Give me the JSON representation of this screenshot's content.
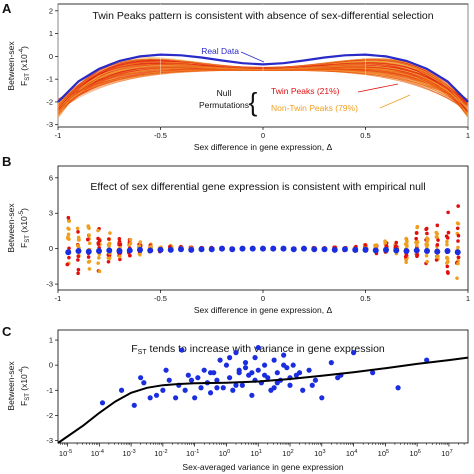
{
  "figure": {
    "panels": [
      {
        "letter": "A",
        "title": "Twin Peaks pattern is consistent with absence of sex-differential selection",
        "ylabel_top": "Between-sex",
        "ylabel_bottom": "F",
        "ylabel_sub": "ST",
        "ylabel_unit": " (x10",
        "ylabel_exp": "-4",
        "ylabel_close": ")",
        "xlabel": "Sex difference in gene expression, Δ",
        "annotations": {
          "real": "Real Data",
          "null_line1": "Null",
          "null_line2": "Permutations",
          "twin": "Twin Peaks (21%)",
          "nontwin": "Non-Twin Peaks (79%)"
        }
      },
      {
        "letter": "B",
        "title": "Effect of sex differential gene expression is consistent with empirical null",
        "ylabel_top": "Between-sex",
        "ylabel_bottom": "F",
        "ylabel_sub": "ST",
        "ylabel_unit": " (x10",
        "ylabel_exp": "-5",
        "ylabel_close": ")",
        "xlabel": "Sex difference in gene expression, Δ"
      },
      {
        "letter": "C",
        "title_main": "F",
        "title_sub": "ST",
        "title_rest": " tends to increase with variance in gene expression",
        "ylabel_top": "Between-sex",
        "ylabel_bottom": "F",
        "ylabel_sub": "ST",
        "ylabel_unit": " (x10",
        "ylabel_exp": "-4",
        "ylabel_close": ")",
        "xlabel": "Sex-averaged variance in gene expression"
      }
    ]
  },
  "colors": {
    "real": "#2a2ac8",
    "twin": "#e01010",
    "nontwin": "#f0a020",
    "mid": "#f06010",
    "blue_points": "#1a2ee0",
    "fit": "#000000"
  },
  "chart_data": [
    {
      "type": "line",
      "panel": "A",
      "xlim": [
        -1,
        1
      ],
      "ylim": [
        -3.1,
        2.3
      ],
      "xticks": [
        -1,
        -0.5,
        0,
        0.5,
        1
      ],
      "xtick_labels": [
        "-1",
        "-0.5",
        "0",
        "0.5",
        "1"
      ],
      "yticks": [
        -3,
        -2,
        -1,
        0,
        1,
        2
      ],
      "ytick_labels": [
        "-3",
        "-2",
        "-1",
        "0",
        "1",
        "2"
      ],
      "series": [
        {
          "name": "Real Data",
          "x": [
            -1,
            -0.9,
            -0.8,
            -0.7,
            -0.6,
            -0.5,
            -0.4,
            -0.3,
            -0.2,
            -0.1,
            0,
            0.1,
            0.2,
            0.3,
            0.4,
            0.5,
            0.6,
            0.7,
            0.8,
            0.9,
            1
          ],
          "values": [
            -2.0,
            -1.1,
            -0.55,
            -0.2,
            0.0,
            0.08,
            0.05,
            -0.05,
            -0.18,
            -0.3,
            -0.35,
            -0.3,
            -0.18,
            -0.05,
            0.05,
            0.08,
            0.0,
            -0.2,
            -0.55,
            -1.1,
            -2.0
          ]
        }
      ],
      "null_permutation_groups": [
        {
          "name": "Twin Peaks (21%)",
          "share_percent": 21
        },
        {
          "name": "Non-Twin Peaks (79%)",
          "share_percent": 79
        }
      ]
    },
    {
      "type": "scatter",
      "panel": "B",
      "xlim": [
        -1,
        1
      ],
      "ylim": [
        -3.5,
        7
      ],
      "xticks": [
        -1,
        -0.5,
        0,
        0.5,
        1
      ],
      "xtick_labels": [
        "-1",
        "-0.5",
        "0",
        "0.5",
        "1"
      ],
      "yticks": [
        -3,
        0,
        3,
        6
      ],
      "ytick_labels": [
        "-3",
        "0",
        "3",
        "6"
      ],
      "real_x": [
        -0.95,
        -0.9,
        -0.85,
        -0.8,
        -0.75,
        -0.7,
        -0.65,
        -0.6,
        -0.55,
        -0.5,
        -0.45,
        -0.4,
        -0.35,
        -0.3,
        -0.25,
        -0.2,
        -0.15,
        -0.1,
        -0.05,
        0,
        0.05,
        0.1,
        0.15,
        0.2,
        0.25,
        0.3,
        0.35,
        0.4,
        0.45,
        0.5,
        0.55,
        0.6,
        0.65,
        0.7,
        0.75,
        0.8,
        0.85,
        0.9,
        0.95
      ],
      "real_y": [
        -0.3,
        -0.2,
        -0.25,
        -0.2,
        -0.15,
        -0.2,
        -0.15,
        -0.1,
        -0.15,
        -0.1,
        -0.1,
        -0.05,
        -0.1,
        -0.05,
        -0.05,
        0,
        -0.05,
        0,
        0,
        0,
        0,
        0,
        -0.05,
        0,
        -0.05,
        -0.05,
        -0.1,
        -0.05,
        -0.1,
        -0.1,
        -0.15,
        -0.1,
        -0.15,
        -0.2,
        -0.15,
        -0.2,
        -0.25,
        -0.2,
        -0.3
      ],
      "null_spread": [
        2.6,
        2.4,
        2.2,
        1.8,
        1.4,
        1.0,
        0.7,
        0.5,
        0.35,
        0.25,
        0.2,
        0.15,
        0.12,
        0.1,
        0.08,
        0.06,
        0.05,
        0.05,
        0.04,
        0.04,
        0.04,
        0.05,
        0.05,
        0.06,
        0.08,
        0.1,
        0.12,
        0.15,
        0.2,
        0.25,
        0.35,
        0.5,
        0.7,
        1.0,
        1.4,
        1.8,
        2.2,
        2.4,
        2.6
      ]
    },
    {
      "type": "scatter",
      "panel": "C",
      "x_scale": "log10",
      "xlim_log10": [
        -5.3,
        7.6
      ],
      "ylim": [
        -3.1,
        1.4
      ],
      "xtick_exponents": [
        -5,
        -4,
        -3,
        -2,
        -1,
        0,
        1,
        2,
        3,
        4,
        5,
        6,
        7
      ],
      "xtick_labels": [
        "10",
        "10",
        "10",
        "10",
        "10",
        "10",
        "10",
        "10",
        "10",
        "10",
        "10",
        "10",
        "10"
      ],
      "xtick_exponent_labels": [
        "-5",
        "-4",
        "-3",
        "-2",
        "-1",
        "0",
        "1",
        "2",
        "3",
        "4",
        "5",
        "6",
        "7"
      ],
      "yticks": [
        -3,
        -2,
        -1,
        0,
        1
      ],
      "ytick_labels": [
        "-3",
        "-2",
        "-1",
        "0",
        "1"
      ],
      "fit_x_log10": [
        -5.3,
        -4.5,
        -4,
        -3.5,
        -3,
        -2.5,
        -2,
        -1.5,
        -1,
        0,
        1,
        2,
        3,
        4,
        5,
        6,
        7,
        7.6
      ],
      "fit_y": [
        -3.1,
        -2.4,
        -1.9,
        -1.45,
        -1.1,
        -0.9,
        -0.8,
        -0.75,
        -0.72,
        -0.7,
        -0.65,
        -0.55,
        -0.42,
        -0.28,
        -0.12,
        0.05,
        0.2,
        0.3
      ],
      "points_x_log10": [
        -3.9,
        -3.3,
        -2.9,
        -2.6,
        -2.4,
        -2.2,
        -2.0,
        -1.8,
        -1.6,
        -1.5,
        -1.3,
        -1.2,
        -1.0,
        -0.9,
        -0.8,
        -0.7,
        -0.6,
        -0.5,
        -0.4,
        -0.3,
        -0.2,
        -0.1,
        0.0,
        0.1,
        0.2,
        0.3,
        0.4,
        0.5,
        0.6,
        0.7,
        0.8,
        0.9,
        1.0,
        1.1,
        1.2,
        1.3,
        1.4,
        1.5,
        1.6,
        1.7,
        1.8,
        1.9,
        2.0,
        2.1,
        2.2,
        2.4,
        2.6,
        2.8,
        3.0,
        3.3,
        3.6,
        4.0,
        4.6,
        5.4,
        6.3,
        -2.7,
        -1.9,
        -1.1,
        -0.3,
        0.3,
        0.6,
        0.9,
        1.2,
        1.5,
        1.8,
        2.3,
        0.1,
        0.8,
        -0.5,
        1.6,
        2.7,
        -1.4,
        0.4,
        1.0,
        2.0,
        3.5
      ],
      "points_y": [
        -1.5,
        -1.0,
        -1.6,
        -0.7,
        -1.3,
        -1.2,
        -1.0,
        -0.6,
        -1.3,
        -0.8,
        -1.0,
        -0.4,
        -1.3,
        -0.5,
        -0.9,
        -0.2,
        -0.7,
        -1.1,
        -0.3,
        -0.6,
        0.2,
        -0.9,
        0.0,
        -0.5,
        -1.0,
        0.5,
        -0.3,
        -0.8,
        0.1,
        -0.4,
        -1.2,
        0.3,
        -0.2,
        -0.7,
        0.0,
        -0.5,
        -1.0,
        0.2,
        -0.3,
        -0.6,
        0.4,
        -0.1,
        -0.8,
        0.0,
        -0.4,
        -1.0,
        -0.2,
        -0.6,
        -1.3,
        0.1,
        -0.4,
        0.5,
        -0.3,
        -0.9,
        0.2,
        -0.5,
        -0.2,
        -0.6,
        -0.9,
        -0.8,
        -0.1,
        -0.6,
        -0.4,
        -0.9,
        0.0,
        -0.3,
        0.3,
        -0.3,
        -0.3,
        -0.7,
        -0.8,
        0.6,
        -0.2,
        0.7,
        -0.5,
        -0.5
      ]
    }
  ]
}
